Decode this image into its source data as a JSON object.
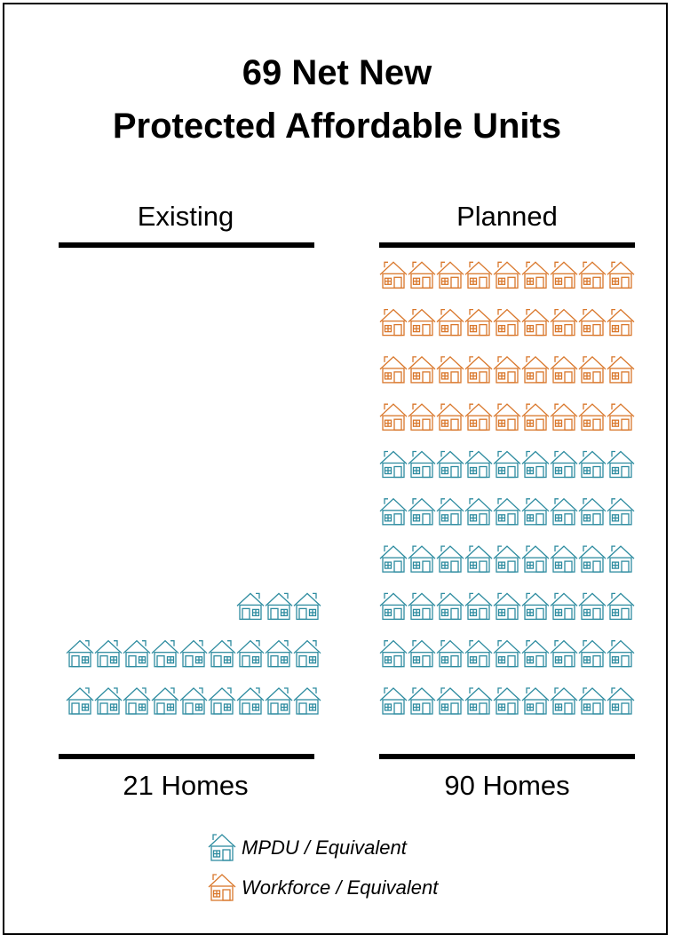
{
  "title_line1": "69 Net New",
  "title_line2": "Protected Affordable Units",
  "colors": {
    "mpdu": "#2e8ca0",
    "workforce": "#d9772b"
  },
  "legend": [
    {
      "key": "mpdu",
      "label": "MPDU / Equivalent",
      "icon": "house-icon"
    },
    {
      "key": "workforce",
      "label": "Workforce / Equivalent",
      "icon": "house-icon"
    }
  ],
  "chart_data": {
    "type": "pictograph",
    "unit": "home",
    "categories": [
      "Existing",
      "Planned"
    ],
    "totals_labels": [
      "21 Homes",
      "90 Homes"
    ],
    "series": [
      {
        "name": "MPDU / Equivalent",
        "values": [
          21,
          54
        ]
      },
      {
        "name": "Workforce / Equivalent",
        "values": [
          0,
          36
        ]
      }
    ],
    "icons_per_row": 9
  }
}
